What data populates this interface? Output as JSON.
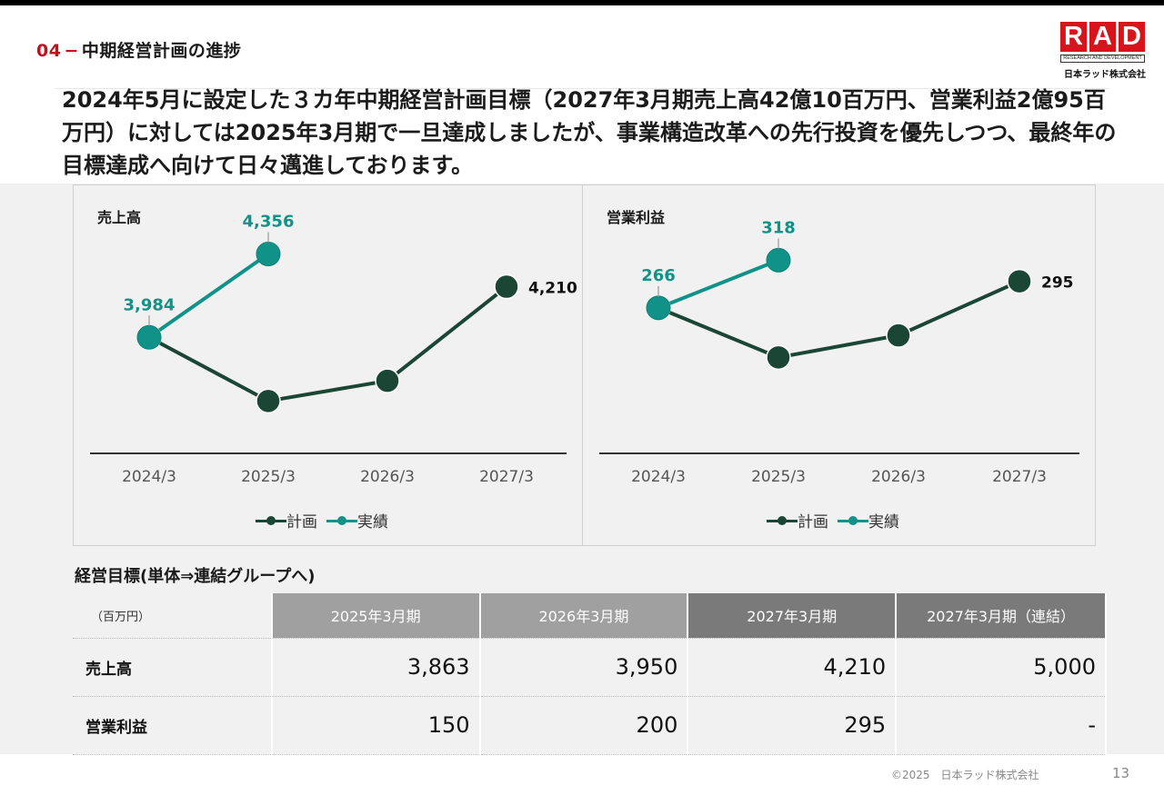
{
  "header": {
    "section_num": "04",
    "section_dash": "−",
    "section_title": "中期経営計画の進捗",
    "headline": "2024年5月に設定した３カ年中期経営計画目標（2027年3月期売上高42億10百万円、営業利益2億95百万円）に対しては2025年3月期で一旦達成しましたが、事業構造改革への先行投資を優先しつつ、最終年の目標達成へ向けて日々邁進しております。"
  },
  "logo": {
    "letters": [
      "R",
      "A",
      "D"
    ],
    "sub": "RESEARCH AND DEVELOPMENT",
    "company": "日本ラッド株式会社",
    "brand_color": "#d7141b"
  },
  "colors": {
    "plan": "#1b4535",
    "actual": "#119288",
    "axis": "#333333"
  },
  "chart_data": [
    {
      "type": "line",
      "title": "売上高",
      "categories": [
        "2024/3",
        "2025/3",
        "2026/3",
        "2027/3"
      ],
      "ylim": [
        3600,
        4500
      ],
      "series": [
        {
          "name": "計画",
          "values": [
            3984,
            3700,
            3790,
            4210
          ],
          "labels": [
            null,
            null,
            null,
            "4,210"
          ]
        },
        {
          "name": "実績",
          "values": [
            3984,
            4356,
            null,
            null
          ],
          "labels": [
            "3,984",
            "4,356",
            null,
            null
          ]
        }
      ],
      "legend": [
        "計画",
        "実績"
      ]
    },
    {
      "type": "line",
      "title": "営業利益",
      "categories": [
        "2024/3",
        "2025/3",
        "2026/3",
        "2027/3"
      ],
      "ylim": [
        140,
        360
      ],
      "series": [
        {
          "name": "計画",
          "values": [
            266,
            212,
            236,
            295
          ],
          "labels": [
            null,
            null,
            null,
            "295"
          ]
        },
        {
          "name": "実績",
          "values": [
            266,
            318,
            null,
            null
          ],
          "labels": [
            "266",
            "318",
            null,
            null
          ]
        }
      ],
      "legend": [
        "計画",
        "実績"
      ]
    }
  ],
  "table": {
    "title": "経営目標(単体⇒連結グループへ)",
    "unit": "（百万円）",
    "columns": [
      "2025年3月期",
      "2026年3月期",
      "2027年3月期",
      "2027年3月期（連結）"
    ],
    "rows": [
      {
        "label": "売上高",
        "values": [
          "3,863",
          "3,950",
          "4,210",
          "5,000"
        ]
      },
      {
        "label": "営業利益",
        "values": [
          "150",
          "200",
          "295",
          "-"
        ]
      }
    ]
  },
  "footer": {
    "copyright": "©2025　日本ラッド株式会社",
    "page": "13"
  }
}
